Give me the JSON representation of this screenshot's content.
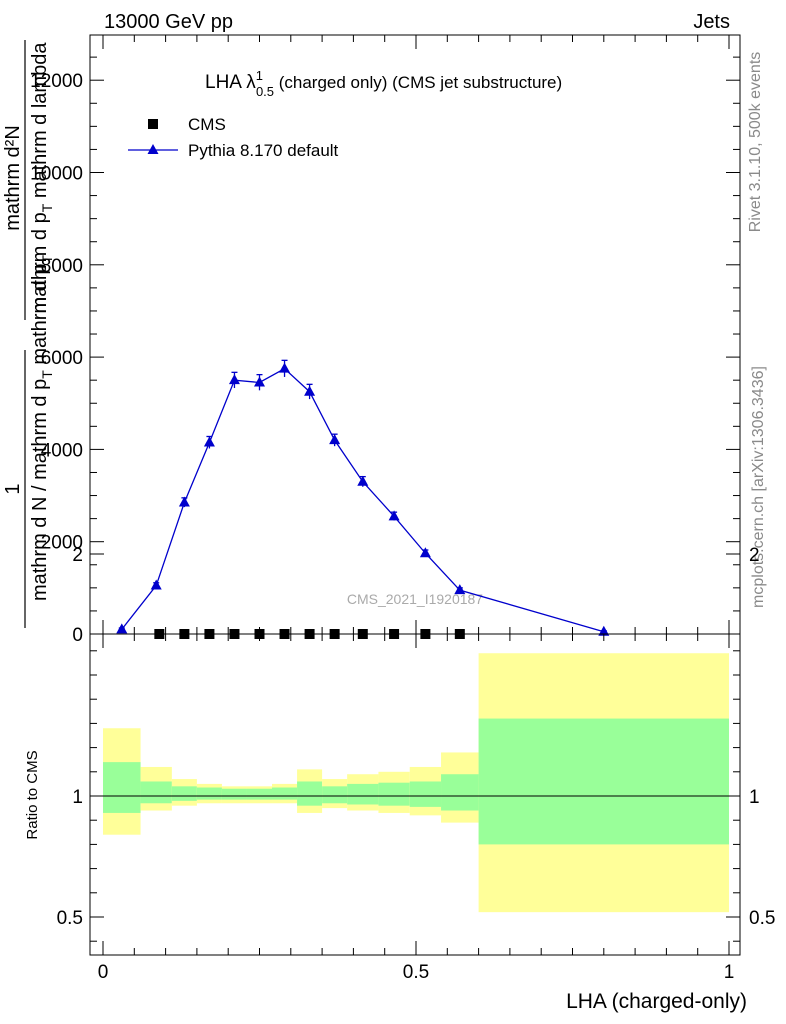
{
  "header": {
    "left": "13000 GeV pp",
    "right": "Jets"
  },
  "side_labels": {
    "top": "Rivet 3.1.10,  500k events",
    "bottom": "mcplots.cern.ch [arXiv:1306.3436]"
  },
  "colors": {
    "mc_line": "#0000cc",
    "data_marker": "#000000",
    "band_inner": "#99ff99",
    "band_outer": "#ffff99",
    "side_text": "#8a8a8a"
  },
  "chart_data": [
    {
      "type": "line",
      "title": "LHA λ",
      "title_sup": "1",
      "title_sub": "0.5",
      "title_suffix": " (charged only) (CMS jet substructure)",
      "ylabel_numerator": "mathrm d²N",
      "ylabel_den_top": "mathrm d p",
      "ylabel_den_sub": "T",
      "ylabel_den_rest": " mathrm d lambda",
      "ylabel_prefix": "1",
      "ylabel_prefix_den": "mathrm d N / mathrm d p",
      "ylabel_prefix_den_sub": "T",
      "ylabel_prefix_den_rest": " mathrm d p",
      "ylabel_prefix_den_sub2": "T",
      "watermark": "CMS_2021_I1920187",
      "xlim": [
        0,
        1
      ],
      "ylim": [
        0,
        13000
      ],
      "yticks": [
        0,
        2000,
        4000,
        6000,
        8000,
        10000,
        12000
      ],
      "ytick_labels": [
        "0",
        "2000",
        "4000",
        "6000",
        "8000",
        "10000",
        "12000"
      ],
      "legend_placement": "top-left",
      "series": [
        {
          "name": "CMS",
          "marker": "square",
          "x": [
            0.09,
            0.13,
            0.17,
            0.21,
            0.25,
            0.29,
            0.33,
            0.37,
            0.415,
            0.465,
            0.515,
            0.57
          ],
          "y": [
            0,
            0,
            0,
            0,
            0,
            0,
            0,
            0,
            0,
            0,
            0,
            0
          ]
        },
        {
          "name": "Pythia 8.170 default",
          "marker": "triangle",
          "x": [
            0.03,
            0.085,
            0.13,
            0.17,
            0.21,
            0.25,
            0.29,
            0.33,
            0.37,
            0.415,
            0.465,
            0.515,
            0.57,
            0.8
          ],
          "y": [
            100,
            1050,
            2850,
            4150,
            5500,
            5450,
            5750,
            5250,
            4200,
            3300,
            2550,
            1750,
            950,
            50
          ],
          "yerr": [
            30,
            60,
            100,
            130,
            170,
            170,
            180,
            160,
            130,
            110,
            90,
            70,
            50,
            20
          ]
        }
      ]
    },
    {
      "type": "area",
      "ylabel": "Ratio to CMS",
      "xlabel": "LHA (charged-only)",
      "xlim": [
        0,
        1
      ],
      "ylim": [
        0.34,
        2.3
      ],
      "xticks": [
        0,
        0.5,
        1
      ],
      "xtick_labels": [
        "0",
        "0.5",
        "1"
      ],
      "yticks": [
        0.5,
        1,
        2
      ],
      "ytick_labels": [
        "0.5",
        "1",
        "2"
      ],
      "reference_line": 1,
      "bands": [
        {
          "x0": 0.0,
          "x1": 0.06,
          "outer": [
            0.84,
            1.28
          ],
          "inner": [
            0.93,
            1.14
          ]
        },
        {
          "x0": 0.06,
          "x1": 0.11,
          "outer": [
            0.94,
            1.12
          ],
          "inner": [
            0.97,
            1.06
          ]
        },
        {
          "x0": 0.11,
          "x1": 0.15,
          "outer": [
            0.96,
            1.07
          ],
          "inner": [
            0.98,
            1.04
          ]
        },
        {
          "x0": 0.15,
          "x1": 0.19,
          "outer": [
            0.97,
            1.05
          ],
          "inner": [
            0.985,
            1.035
          ]
        },
        {
          "x0": 0.19,
          "x1": 0.23,
          "outer": [
            0.97,
            1.04
          ],
          "inner": [
            0.985,
            1.03
          ]
        },
        {
          "x0": 0.23,
          "x1": 0.27,
          "outer": [
            0.97,
            1.04
          ],
          "inner": [
            0.985,
            1.03
          ]
        },
        {
          "x0": 0.27,
          "x1": 0.31,
          "outer": [
            0.97,
            1.05
          ],
          "inner": [
            0.985,
            1.035
          ]
        },
        {
          "x0": 0.31,
          "x1": 0.35,
          "outer": [
            0.93,
            1.11
          ],
          "inner": [
            0.96,
            1.06
          ]
        },
        {
          "x0": 0.35,
          "x1": 0.39,
          "outer": [
            0.95,
            1.07
          ],
          "inner": [
            0.97,
            1.04
          ]
        },
        {
          "x0": 0.39,
          "x1": 0.44,
          "outer": [
            0.94,
            1.09
          ],
          "inner": [
            0.965,
            1.05
          ]
        },
        {
          "x0": 0.44,
          "x1": 0.49,
          "outer": [
            0.93,
            1.1
          ],
          "inner": [
            0.96,
            1.055
          ]
        },
        {
          "x0": 0.49,
          "x1": 0.54,
          "outer": [
            0.92,
            1.12
          ],
          "inner": [
            0.955,
            1.06
          ]
        },
        {
          "x0": 0.54,
          "x1": 0.6,
          "outer": [
            0.89,
            1.18
          ],
          "inner": [
            0.94,
            1.09
          ]
        },
        {
          "x0": 0.6,
          "x1": 1.0,
          "outer": [
            0.52,
            1.59
          ],
          "inner": [
            0.8,
            1.32
          ]
        }
      ]
    }
  ]
}
